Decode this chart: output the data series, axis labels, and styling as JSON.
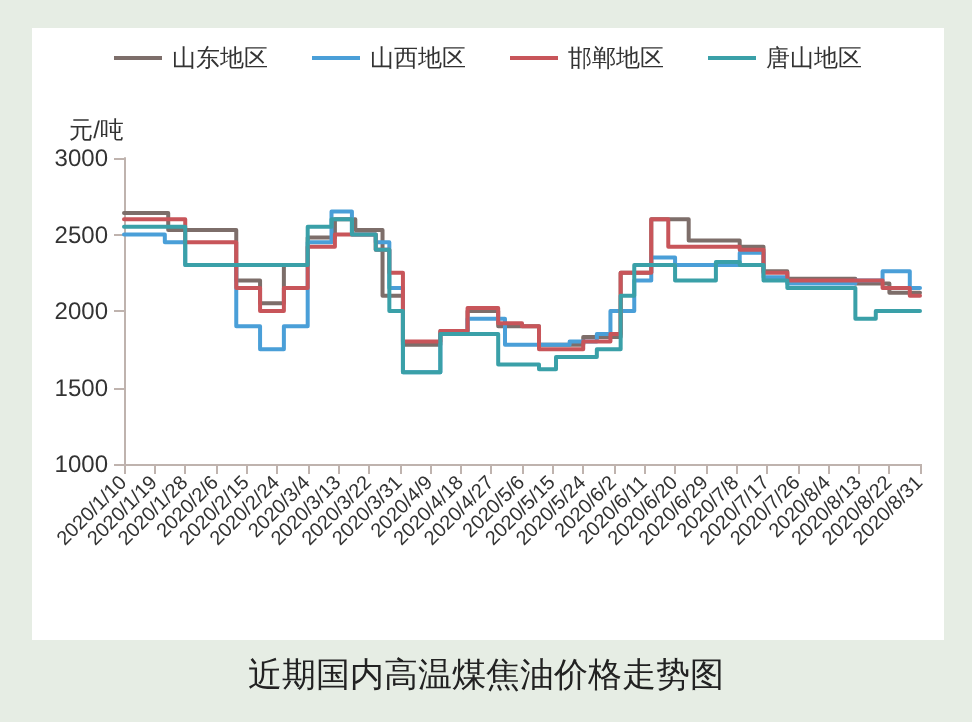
{
  "chart_data": {
    "type": "step",
    "title": "近期国内高温煤焦油价格走势图",
    "ylabel": "元/吨",
    "xlim": [
      "2020-01-10",
      "2020-08-31"
    ],
    "ylim": [
      1000,
      3000
    ],
    "yticks": [
      1000,
      1500,
      2000,
      2500,
      3000
    ],
    "xticks": [
      {
        "value": "2020-01-10",
        "label": "2020/1/10"
      },
      {
        "value": "2020-01-19",
        "label": "2020/1/19"
      },
      {
        "value": "2020-01-28",
        "label": "2020/1/28"
      },
      {
        "value": "2020-02-06",
        "label": "2020/2/6"
      },
      {
        "value": "2020-02-15",
        "label": "2020/2/15"
      },
      {
        "value": "2020-02-24",
        "label": "2020/2/24"
      },
      {
        "value": "2020-03-04",
        "label": "2020/3/4"
      },
      {
        "value": "2020-03-13",
        "label": "2020/3/13"
      },
      {
        "value": "2020-03-22",
        "label": "2020/3/22"
      },
      {
        "value": "2020-03-31",
        "label": "2020/3/31"
      },
      {
        "value": "2020-04-09",
        "label": "2020/4/9"
      },
      {
        "value": "2020-04-18",
        "label": "2020/4/18"
      },
      {
        "value": "2020-04-27",
        "label": "2020/4/27"
      },
      {
        "value": "2020-05-06",
        "label": "2020/5/6"
      },
      {
        "value": "2020-05-15",
        "label": "2020/5/15"
      },
      {
        "value": "2020-05-24",
        "label": "2020/5/24"
      },
      {
        "value": "2020-06-02",
        "label": "2020/6/2"
      },
      {
        "value": "2020-06-11",
        "label": "2020/6/11"
      },
      {
        "value": "2020-06-20",
        "label": "2020/6/20"
      },
      {
        "value": "2020-06-29",
        "label": "2020/6/29"
      },
      {
        "value": "2020-07-08",
        "label": "2020/7/8"
      },
      {
        "value": "2020-07-17",
        "label": "2020/7/17"
      },
      {
        "value": "2020-07-26",
        "label": "2020/7/26"
      },
      {
        "value": "2020-08-04",
        "label": "2020/8/4"
      },
      {
        "value": "2020-08-13",
        "label": "2020/8/13"
      },
      {
        "value": "2020-08-22",
        "label": "2020/8/22"
      },
      {
        "value": "2020-08-31",
        "label": "2020/8/31"
      }
    ],
    "grid": false,
    "legend": "top",
    "marker": "none",
    "line_style": "solid",
    "series": [
      {
        "name": "山东地区",
        "color": "#7d6e6a",
        "x": [
          "2020-01-10",
          "2020-01-23",
          "2020-02-12",
          "2020-02-19",
          "2020-02-26",
          "2020-03-04",
          "2020-03-12",
          "2020-03-18",
          "2020-03-26",
          "2020-04-01",
          "2020-04-12",
          "2020-04-20",
          "2020-04-29",
          "2020-05-11",
          "2020-05-24",
          "2020-06-04",
          "2020-06-13",
          "2020-06-24",
          "2020-07-09",
          "2020-07-16",
          "2020-07-23",
          "2020-08-12",
          "2020-08-22",
          "2020-08-31"
        ],
        "values": [
          2640,
          2530,
          2200,
          2050,
          2300,
          2480,
          2600,
          2530,
          2100,
          1780,
          1870,
          2000,
          1900,
          1780,
          1830,
          2250,
          2600,
          2460,
          2420,
          2260,
          2210,
          2180,
          2120,
          2120
        ]
      },
      {
        "name": "山西地区",
        "color": "#4a9fd8",
        "x": [
          "2020-01-10",
          "2020-01-22",
          "2020-01-28",
          "2020-02-12",
          "2020-02-19",
          "2020-02-26",
          "2020-03-04",
          "2020-03-11",
          "2020-03-17",
          "2020-03-24",
          "2020-03-28",
          "2020-04-01",
          "2020-04-12",
          "2020-04-20",
          "2020-05-01",
          "2020-05-20",
          "2020-05-28",
          "2020-06-01",
          "2020-06-08",
          "2020-06-13",
          "2020-06-20",
          "2020-07-02",
          "2020-07-09",
          "2020-07-16",
          "2020-07-23",
          "2020-08-12",
          "2020-08-20",
          "2020-08-28",
          "2020-08-31"
        ],
        "values": [
          2500,
          2450,
          2300,
          1900,
          1750,
          1900,
          2450,
          2650,
          2500,
          2450,
          2150,
          1600,
          1850,
          1950,
          1780,
          1800,
          1850,
          2000,
          2200,
          2350,
          2300,
          2300,
          2380,
          2220,
          2180,
          2200,
          2260,
          2150,
          2150
        ]
      },
      {
        "name": "邯郸地区",
        "color": "#c8555a",
        "x": [
          "2020-01-10",
          "2020-01-28",
          "2020-02-12",
          "2020-02-19",
          "2020-02-26",
          "2020-03-04",
          "2020-03-12",
          "2020-03-24",
          "2020-03-28",
          "2020-04-01",
          "2020-04-12",
          "2020-04-20",
          "2020-04-29",
          "2020-05-06",
          "2020-05-11",
          "2020-05-24",
          "2020-06-01",
          "2020-06-04",
          "2020-06-13",
          "2020-06-18",
          "2020-07-09",
          "2020-07-16",
          "2020-07-23",
          "2020-08-12",
          "2020-08-20",
          "2020-08-28",
          "2020-08-31"
        ],
        "values": [
          2600,
          2450,
          2150,
          2000,
          2150,
          2420,
          2500,
          2400,
          2250,
          1800,
          1870,
          2020,
          1920,
          1900,
          1750,
          1800,
          1850,
          2250,
          2600,
          2420,
          2400,
          2250,
          2200,
          2200,
          2150,
          2100,
          2100
        ]
      },
      {
        "name": "唐山地区",
        "color": "#3aa0a8",
        "x": [
          "2020-01-10",
          "2020-01-28",
          "2020-03-04",
          "2020-03-11",
          "2020-03-17",
          "2020-03-24",
          "2020-03-28",
          "2020-04-01",
          "2020-04-12",
          "2020-04-29",
          "2020-05-11",
          "2020-05-16",
          "2020-05-28",
          "2020-06-04",
          "2020-06-08",
          "2020-06-20",
          "2020-07-02",
          "2020-07-09",
          "2020-07-16",
          "2020-07-23",
          "2020-08-12",
          "2020-08-18",
          "2020-08-31"
        ],
        "values": [
          2550,
          2300,
          2550,
          2600,
          2500,
          2400,
          2000,
          1600,
          1850,
          1650,
          1620,
          1700,
          1750,
          2100,
          2300,
          2200,
          2320,
          2300,
          2200,
          2150,
          1950,
          2000,
          2000
        ]
      }
    ]
  }
}
